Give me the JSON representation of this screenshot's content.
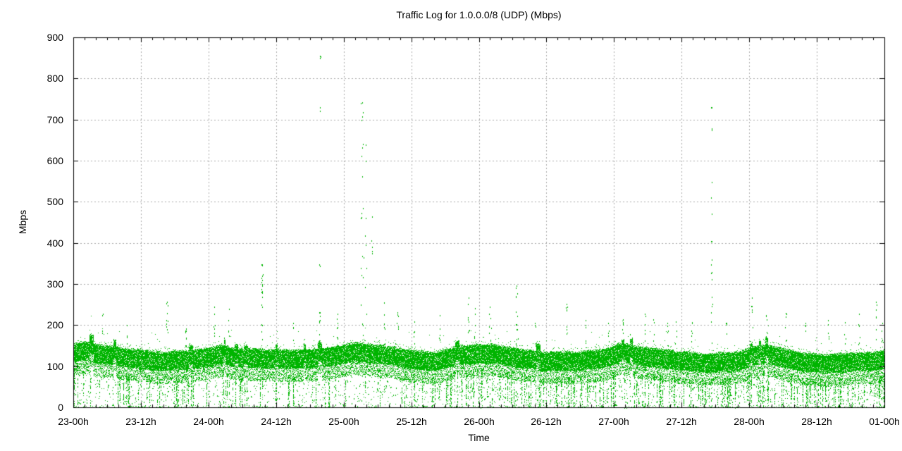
{
  "chart_data": {
    "type": "scatter",
    "style": "dots",
    "title": "Traffic Log for 1.0.0.0/8 (UDP) (Mbps)",
    "xlabel": "Time",
    "ylabel": "Mbps",
    "ylim": [
      0,
      900
    ],
    "y_ticks": [
      0,
      100,
      200,
      300,
      400,
      500,
      600,
      700,
      800,
      900
    ],
    "y_tick_labels": [
      "0",
      "100",
      "200",
      "300",
      "400",
      "500",
      "600",
      "700",
      "800",
      "900"
    ],
    "x_ticks_hours": [
      0,
      12,
      24,
      36,
      48,
      60,
      72,
      84,
      96,
      108,
      120,
      132,
      144
    ],
    "x_tick_labels": [
      "23-00h",
      "23-12h",
      "24-00h",
      "24-12h",
      "25-00h",
      "25-12h",
      "26-00h",
      "26-12h",
      "27-00h",
      "27-12h",
      "28-00h",
      "28-12h",
      "01-00h"
    ],
    "x_minor_step_hours": 2,
    "grid": true,
    "legend_position": "none",
    "point_color": "#00b400",
    "grid_color": "#a8a8a8",
    "axis_color": "#000000",
    "description": "Dense band of UDP traffic samples around 100-155 Mbps with sparse under-scatter down to 0 and occasional spikes up to ~850 Mbps",
    "band_top_profile": [
      [
        0,
        152
      ],
      [
        2,
        155
      ],
      [
        6,
        147
      ],
      [
        12,
        137
      ],
      [
        16,
        132
      ],
      [
        20,
        133
      ],
      [
        24,
        139
      ],
      [
        26,
        145
      ],
      [
        30,
        136
      ],
      [
        36,
        132
      ],
      [
        42,
        133
      ],
      [
        46,
        139
      ],
      [
        50,
        151
      ],
      [
        53,
        147
      ],
      [
        56,
        142
      ],
      [
        60,
        131
      ],
      [
        64,
        129
      ],
      [
        68,
        141
      ],
      [
        72,
        146
      ],
      [
        75,
        147
      ],
      [
        80,
        136
      ],
      [
        84,
        131
      ],
      [
        90,
        133
      ],
      [
        94,
        141
      ],
      [
        97,
        155
      ],
      [
        99,
        150
      ],
      [
        104,
        138
      ],
      [
        108,
        132
      ],
      [
        114,
        131
      ],
      [
        118,
        134
      ],
      [
        121,
        148
      ],
      [
        123,
        151
      ],
      [
        126,
        143
      ],
      [
        130,
        131
      ],
      [
        134,
        129
      ],
      [
        138,
        132
      ],
      [
        141,
        135
      ],
      [
        144,
        139
      ]
    ],
    "band_core_thickness": 42,
    "under_density_profile": [
      [
        0,
        0.6
      ],
      [
        6,
        0.55
      ],
      [
        12,
        0.5
      ],
      [
        24,
        0.5
      ],
      [
        36,
        0.45
      ],
      [
        48,
        0.5
      ],
      [
        60,
        0.5
      ],
      [
        70,
        0.6
      ],
      [
        72,
        0.8
      ],
      [
        78,
        0.85
      ],
      [
        84,
        0.65
      ],
      [
        90,
        0.6
      ],
      [
        96,
        0.7
      ],
      [
        102,
        0.6
      ],
      [
        108,
        0.7
      ],
      [
        114,
        0.75
      ],
      [
        120,
        0.8
      ],
      [
        126,
        0.75
      ],
      [
        132,
        0.7
      ],
      [
        138,
        0.7
      ],
      [
        144,
        0.72
      ]
    ],
    "spikes": [
      [
        5.2,
        150,
        228,
        3,
        1
      ],
      [
        9.5,
        150,
        200,
        3,
        1
      ],
      [
        16.6,
        180,
        258,
        10,
        2
      ],
      [
        20.0,
        145,
        192,
        8,
        1
      ],
      [
        25.0,
        160,
        246,
        6,
        1
      ],
      [
        27.6,
        160,
        240,
        4,
        1
      ],
      [
        33.5,
        278,
        348,
        13,
        1
      ],
      [
        33.5,
        160,
        270,
        6,
        1
      ],
      [
        39.0,
        155,
        205,
        3,
        1
      ],
      [
        43.7,
        150,
        232,
        9,
        1
      ],
      [
        43.7,
        335,
        348,
        2,
        1
      ],
      [
        43.8,
        715,
        730,
        1,
        1
      ],
      [
        43.8,
        848,
        856,
        2,
        1
      ],
      [
        46.9,
        150,
        228,
        7,
        1
      ],
      [
        51.3,
        160,
        742,
        21,
        2
      ],
      [
        51.9,
        200,
        640,
        7,
        1
      ],
      [
        53.0,
        300,
        465,
        4,
        1
      ],
      [
        55.2,
        150,
        255,
        6,
        1
      ],
      [
        57.6,
        150,
        232,
        5,
        1
      ],
      [
        60.5,
        150,
        210,
        4,
        1
      ],
      [
        65.0,
        150,
        225,
        5,
        1
      ],
      [
        70.2,
        150,
        268,
        7,
        1
      ],
      [
        71.3,
        150,
        242,
        5,
        1
      ],
      [
        74.0,
        150,
        246,
        9,
        2
      ],
      [
        78.7,
        146,
        296,
        15,
        2
      ],
      [
        82.0,
        150,
        206,
        4,
        1
      ],
      [
        87.6,
        150,
        252,
        7,
        1
      ],
      [
        91.0,
        150,
        212,
        4,
        1
      ],
      [
        95.0,
        150,
        206,
        4,
        1
      ],
      [
        97.6,
        155,
        215,
        5,
        1
      ],
      [
        101.5,
        150,
        228,
        5,
        1
      ],
      [
        103.0,
        150,
        215,
        3,
        1
      ],
      [
        105.5,
        150,
        206,
        4,
        1
      ],
      [
        107.0,
        150,
        210,
        3,
        1
      ],
      [
        109.8,
        150,
        208,
        5,
        1
      ],
      [
        113.3,
        200,
        731,
        14,
        1
      ],
      [
        113.3,
        150,
        330,
        6,
        1
      ],
      [
        116.0,
        150,
        206,
        3,
        1
      ],
      [
        120.5,
        150,
        268,
        6,
        1
      ],
      [
        123.0,
        150,
        225,
        4,
        1
      ],
      [
        126.5,
        150,
        230,
        5,
        1
      ],
      [
        130.0,
        150,
        206,
        3,
        1
      ],
      [
        134.0,
        150,
        212,
        4,
        1
      ],
      [
        137.0,
        150,
        208,
        3,
        1
      ],
      [
        139.5,
        150,
        228,
        5,
        1
      ],
      [
        142.5,
        150,
        258,
        6,
        1
      ],
      [
        143.6,
        150,
        206,
        4,
        1
      ]
    ]
  }
}
